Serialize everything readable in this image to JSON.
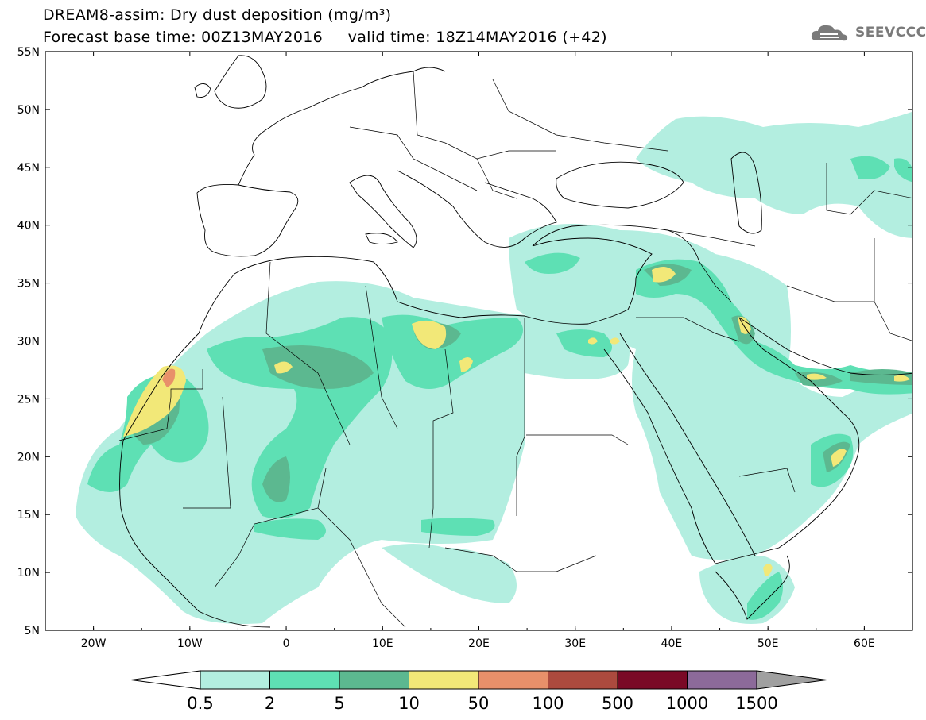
{
  "header": {
    "title_line1": "DREAM8-assim: Dry dust deposition (mg/m³)",
    "title_line2": "Forecast base time: 00Z13MAY2016     valid time: 18Z14MAY2016 (+42)",
    "logo_text": "SEEVCCC"
  },
  "map": {
    "lon_range": [
      -25,
      65
    ],
    "lat_range": [
      5,
      55
    ],
    "lat_ticks": [
      "5N",
      "10N",
      "15N",
      "20N",
      "25N",
      "30N",
      "35N",
      "40N",
      "45N",
      "50N",
      "55N"
    ],
    "lon_ticks": [
      "20W",
      "10W",
      "0",
      "10E",
      "20E",
      "30E",
      "40E",
      "50E",
      "60E"
    ]
  },
  "colorbar": {
    "levels": [
      "0.5",
      "2",
      "5",
      "10",
      "50",
      "100",
      "500",
      "1000",
      "1500"
    ],
    "colors": [
      "#b3eee0",
      "#5ee0b4",
      "#5cb890",
      "#f2e878",
      "#e8906a",
      "#ac4a3e",
      "#7a0a26",
      "#8c6a9a"
    ],
    "under_color": "#ffffff",
    "over_color": "#a0a0a0"
  },
  "colors": {
    "lvl1": "#b3eee0",
    "lvl2": "#5ee0b4",
    "lvl3": "#5cb890",
    "lvl4": "#f2e878",
    "lvl5": "#e8906a"
  }
}
